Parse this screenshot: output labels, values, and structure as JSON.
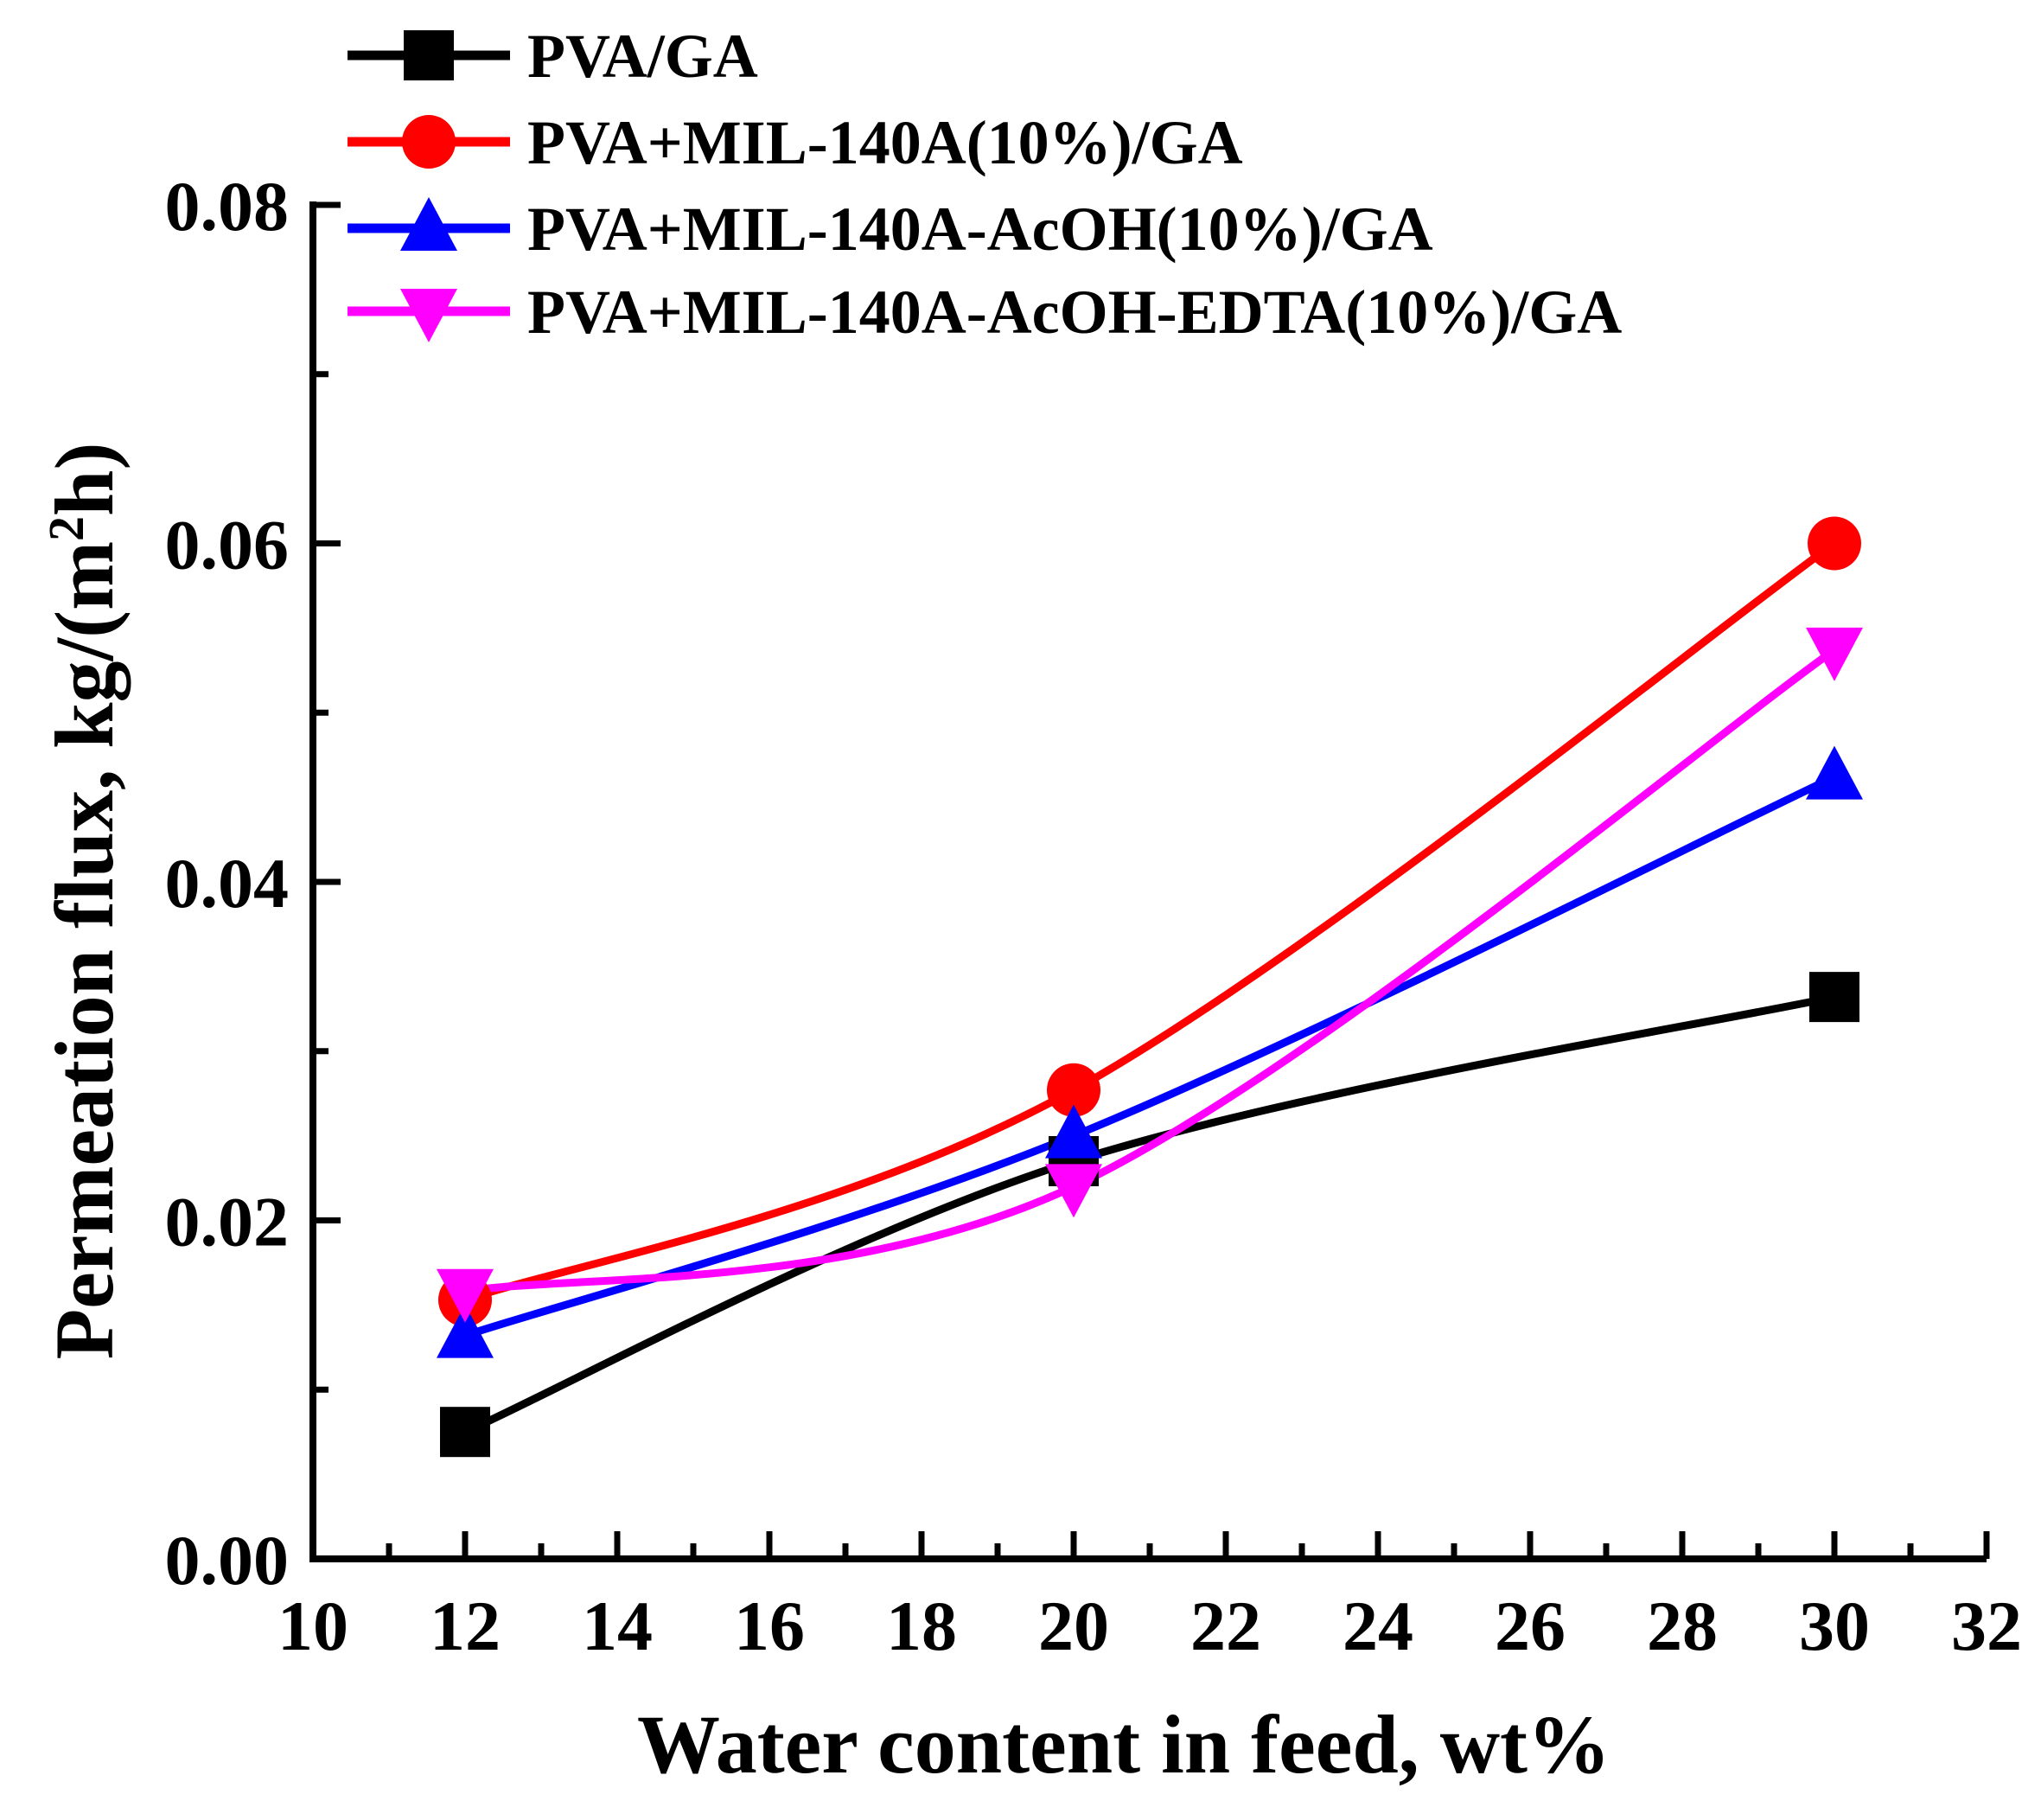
{
  "chart_data": {
    "type": "line",
    "title": "",
    "xlabel": "Water content in feed, wt%",
    "ylabel_main": "Permeation flux, kg/(m",
    "ylabel_sup": "2",
    "ylabel_tail": "h)",
    "xlim": [
      10,
      32
    ],
    "ylim": [
      0.0,
      0.08
    ],
    "x_major_ticks": [
      10,
      12,
      14,
      16,
      18,
      20,
      22,
      24,
      26,
      28,
      30,
      32
    ],
    "x_tick_labels": [
      "10",
      "12",
      "14",
      "16",
      "18",
      "20",
      "22",
      "24",
      "26",
      "28",
      "30",
      "32"
    ],
    "x_minor_ticks": [
      11,
      13,
      15,
      17,
      19,
      21,
      23,
      25,
      27,
      29,
      31
    ],
    "y_major_ticks": [
      0.0,
      0.02,
      0.04,
      0.06,
      0.08
    ],
    "y_tick_labels": [
      "0.00",
      "0.02",
      "0.04",
      "0.06",
      "0.08"
    ],
    "y_minor_ticks": [
      0.01,
      0.03,
      0.05,
      0.07
    ],
    "grid": false,
    "legend_position": "top-left",
    "x": [
      12,
      20,
      30
    ],
    "series": [
      {
        "name": "PVA/GA",
        "values": [
          0.0075,
          0.0235,
          0.0332
        ],
        "color": "#000000",
        "marker": "square"
      },
      {
        "name": "PVA+MIL-140A(10%)/GA",
        "values": [
          0.0153,
          0.0277,
          0.06
        ],
        "color": "#ff0000",
        "marker": "circle"
      },
      {
        "name": "PVA+MIL-140A-AcOH(10%)/GA",
        "values": [
          0.0132,
          0.025,
          0.0462
        ],
        "color": "#0000ff",
        "marker": "triangle-up"
      },
      {
        "name": "PVA+MIL-140A-AcOH-EDTA(10%)/GA",
        "values": [
          0.0158,
          0.022,
          0.0537
        ],
        "color": "#ff00ff",
        "marker": "triangle-down"
      }
    ]
  }
}
